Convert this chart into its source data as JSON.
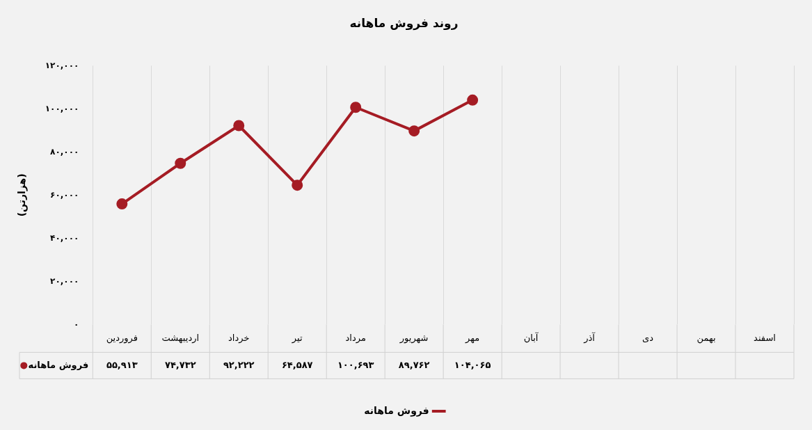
{
  "chart_data": {
    "type": "line",
    "title": "روند فروش ماهانه",
    "ylabel": "(هزارتن)",
    "categories": [
      "فروردین",
      "اردیبهشت",
      "خرداد",
      "تیر",
      "مرداد",
      "شهریور",
      "مهر",
      "آبان",
      "آذر",
      "دی",
      "بهمن",
      "اسفند"
    ],
    "series": [
      {
        "name": "فروش ماهانه",
        "color": "#a51c24",
        "values": [
          55913,
          74732,
          92222,
          64587,
          100693,
          89762,
          104065,
          null,
          null,
          null,
          null,
          null
        ],
        "value_labels": [
          "۵۵,۹۱۳",
          "۷۴,۷۳۲",
          "۹۲,۲۲۲",
          "۶۴,۵۸۷",
          "۱۰۰,۶۹۳",
          "۸۹,۷۶۲",
          "۱۰۴,۰۶۵",
          null,
          null,
          null,
          null,
          null
        ]
      }
    ],
    "ylim": [
      0,
      120000
    ],
    "yticks": [
      {
        "value": 0,
        "label": "۰"
      },
      {
        "value": 20000,
        "label": "۲۰,۰۰۰"
      },
      {
        "value": 40000,
        "label": "۴۰,۰۰۰"
      },
      {
        "value": 60000,
        "label": "۶۰,۰۰۰"
      },
      {
        "value": 80000,
        "label": "۸۰,۰۰۰"
      },
      {
        "value": 100000,
        "label": "۱۰۰,۰۰۰"
      },
      {
        "value": 120000,
        "label": "۱۲۰,۰۰۰"
      }
    ],
    "grid": "x",
    "legend": "bottom",
    "marker": "circle",
    "line_style": "solid"
  }
}
